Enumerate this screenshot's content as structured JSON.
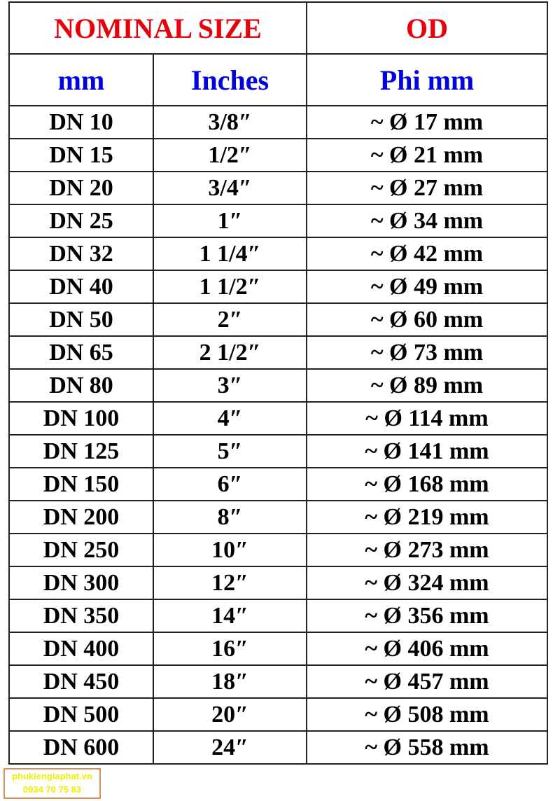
{
  "header": {
    "nominal_size": "NOMINAL SIZE",
    "od": "OD",
    "mm": "mm",
    "inches": "Inches",
    "phi_mm": "Phi mm"
  },
  "rows": [
    [
      "DN 10",
      "3/8″",
      "~ Ø 17 mm"
    ],
    [
      "DN 15",
      "1/2″",
      "~ Ø 21 mm"
    ],
    [
      "DN 20",
      "3/4″",
      "~ Ø 27 mm"
    ],
    [
      "DN 25",
      "1″",
      "~ Ø 34 mm"
    ],
    [
      "DN 32",
      "1 1/4″",
      "~ Ø 42 mm"
    ],
    [
      "DN 40",
      "1 1/2″",
      "~ Ø 49 mm"
    ],
    [
      "DN 50",
      "2″",
      "~ Ø 60 mm"
    ],
    [
      "DN 65",
      "2 1/2″",
      "~ Ø 73 mm"
    ],
    [
      "DN 80",
      "3″",
      "~ Ø 89 mm"
    ],
    [
      "DN 100",
      "4″",
      "~ Ø 114 mm"
    ],
    [
      "DN 125",
      "5″",
      "~ Ø 141 mm"
    ],
    [
      "DN 150",
      "6″",
      "~ Ø 168 mm"
    ],
    [
      "DN 200",
      "8″",
      "~ Ø 219 mm"
    ],
    [
      "DN 250",
      "10″",
      "~ Ø 273 mm"
    ],
    [
      "DN 300",
      "12″",
      "~ Ø 324 mm"
    ],
    [
      "DN 350",
      "14″",
      "~ Ø 356 mm"
    ],
    [
      "DN 400",
      "16″",
      "~ Ø 406 mm"
    ],
    [
      "DN 450",
      "18″",
      "~ Ø 457 mm"
    ],
    [
      "DN 500",
      "20″",
      "~ Ø 508 mm"
    ],
    [
      "DN 600",
      "24″",
      "~ Ø 558 mm"
    ]
  ],
  "watermark": {
    "site": "phukiengiaphat.vn",
    "phone": "0934 70 75 83"
  },
  "colors": {
    "title": "#e8000b",
    "subheader": "#0000e0",
    "watermark": "#f2ee00"
  }
}
